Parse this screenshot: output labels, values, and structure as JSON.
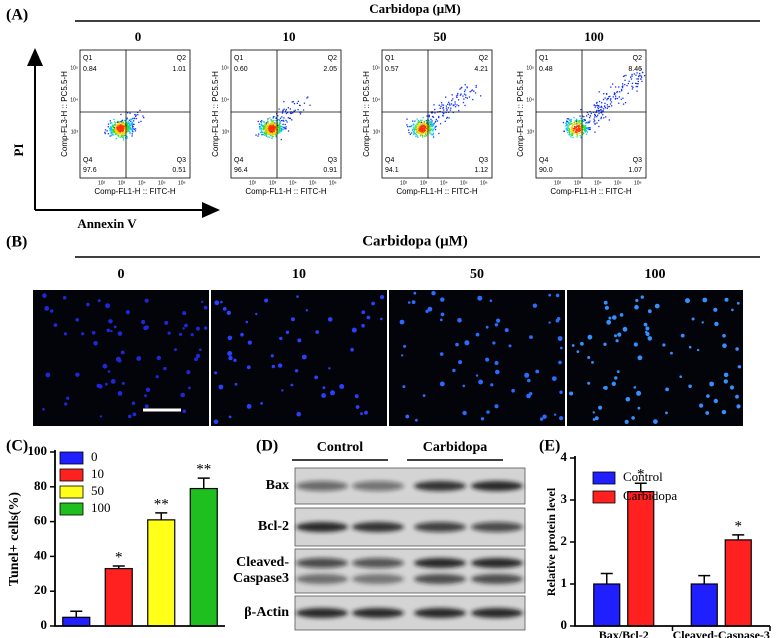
{
  "panel_a": {
    "label": "(A)",
    "treatment": "Carbidopa (μM)",
    "y_axis": "PI",
    "x_axis": "Annexin V",
    "plot_x_label": "Comp-FL1-H :: FITC-H",
    "plot_y_label": "Comp-FL3-H :: PC5.5-H",
    "plot_x_ticks": [
      "10²",
      "10³",
      "10⁴",
      "10⁵",
      "10⁶"
    ],
    "plot_y_ticks": [
      "10⁵",
      "10⁴",
      "10³"
    ],
    "quadrants": [
      "Q1",
      "Q2",
      "Q3",
      "Q4"
    ],
    "plots": [
      {
        "dose": "0",
        "q1": "0.84",
        "q2": "1.01",
        "q3": "0.51",
        "q4": "97.6"
      },
      {
        "dose": "10",
        "q1": "0.60",
        "q2": "2.05",
        "q3": "0.91",
        "q4": "96.4"
      },
      {
        "dose": "50",
        "q1": "0.57",
        "q2": "4.21",
        "q3": "1.12",
        "q4": "94.1"
      },
      {
        "dose": "100",
        "q1": "0.48",
        "q2": "8.46",
        "q3": "1.07",
        "q4": "90.0"
      }
    ]
  },
  "panel_b": {
    "label": "(B)",
    "treatment": "Carbidopa (μM)",
    "doses": [
      "0",
      "10",
      "50",
      "100"
    ]
  },
  "panel_d": {
    "label": "(D)",
    "groups": [
      "Control",
      "Carbidopa"
    ],
    "rows": [
      [
        "Bax"
      ],
      [
        "Bcl-2"
      ],
      [
        "Cleaved-",
        "Caspase3"
      ],
      [
        "β-Actin"
      ]
    ]
  },
  "chart_data": [
    {
      "type": "bar",
      "label": "(C)",
      "ylabel": "Tunel+ cells(%)",
      "categories": [
        null
      ],
      "series": [
        {
          "name": "0",
          "color": "#1f1fff",
          "values": [
            5
          ],
          "errors": [
            3.5
          ]
        },
        {
          "name": "10",
          "color": "#ff2020",
          "values": [
            33
          ],
          "errors": [
            1.5
          ],
          "annotation": "*"
        },
        {
          "name": "50",
          "color": "#ffff1a",
          "values": [
            61
          ],
          "errors": [
            4
          ],
          "annotation": "**"
        },
        {
          "name": "100",
          "color": "#1fbf1f",
          "values": [
            79
          ],
          "errors": [
            6
          ],
          "annotation": "**"
        }
      ],
      "ylim": [
        0,
        100
      ],
      "yticks": [
        0,
        20,
        40,
        60,
        80,
        100
      ]
    },
    {
      "type": "bar",
      "label": "(E)",
      "ylabel": "Relative protein level",
      "categories": [
        "Bax/Bcl-2",
        "Cleaved-Caspase-3"
      ],
      "series": [
        {
          "name": "Control",
          "color": "#1f1fff",
          "values": [
            1.0,
            1.0
          ],
          "errors": [
            0.25,
            0.2
          ]
        },
        {
          "name": "Carbidopa",
          "color": "#ff2020",
          "values": [
            3.2,
            2.05
          ],
          "errors": [
            0.2,
            0.12
          ],
          "annotation": "*"
        }
      ],
      "ylim": [
        0,
        4
      ],
      "yticks": [
        0,
        1,
        2,
        3,
        4
      ]
    }
  ]
}
